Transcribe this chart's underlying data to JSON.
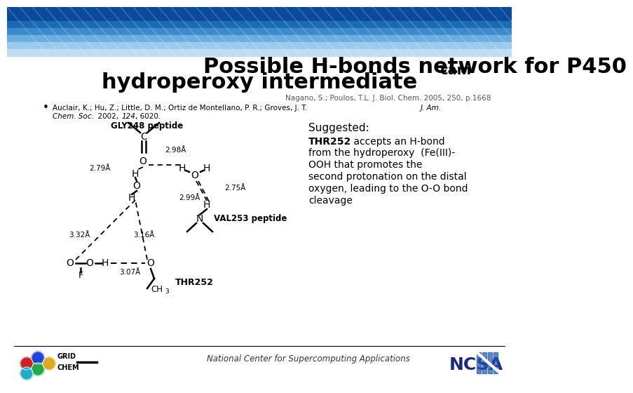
{
  "title_line1": "Possible H-bonds network for P450",
  "title_sub": "cam",
  "title_line2": "hydroperoxy intermediate",
  "ref1": "Nagano, S.; Poulos, T.L. J. Biol. Chem. 2005, 250, p.1668",
  "ref2_part1": "Auclair, K.; Hu, Z.; Little, D. M.; Ortiz de Montellano, P. R.; Groves, J. T. ",
  "ref2_italic": "J. Am.",
  "ref2_line2a": "Chem. Soc.",
  "ref2_line2b": "  2002, ",
  "ref2_line2c": "124",
  "ref2_line2d": ", 6020.",
  "suggested_title": "Suggested:",
  "suggested_bold": "THR252",
  "suggested_rest": " accepts an H-bond\nfrom the hydroperoxy  (Fe(III)-\nOOH that promotes the\nsecond protonation on the distal\noxygen, leading to the O-O bond\ncleavage",
  "footer_text": "National Center for Supercomputing Applications",
  "header_top_color": "#1a6ab5",
  "header_mid_color": "#4a9ad4",
  "header_bot_color": "#8ec4e8",
  "slide_bg": "#ffffff",
  "body_bg": "#f5f5f5"
}
